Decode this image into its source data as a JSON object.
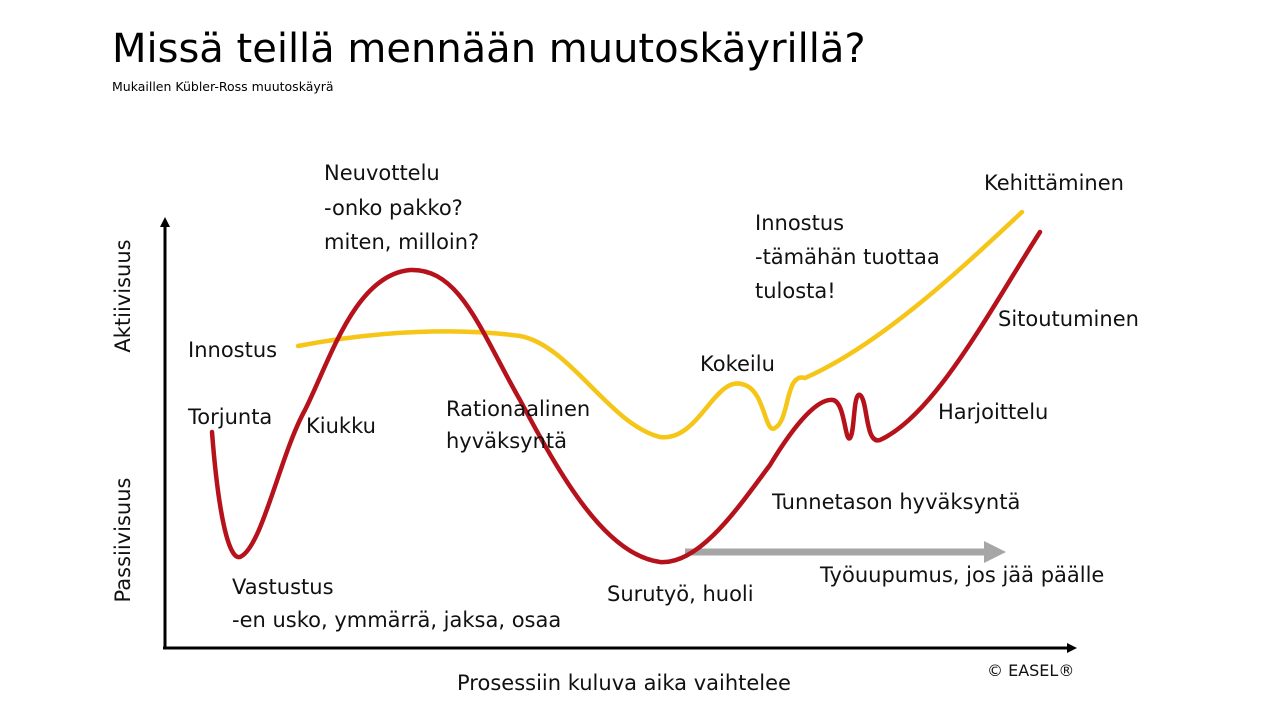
{
  "title": "Missä teillä mennään muutoskäyrillä?",
  "subtitle": "Mukaillen Kübler-Ross muutoskäyrä",
  "axes": {
    "y_upper_label": "Aktiivisuus",
    "y_lower_label": "Passiivisuus",
    "x_label": "Prosessiin kuluva aika vaihtelee"
  },
  "colors": {
    "red_curve": "#b5121b",
    "yellow_curve": "#f5c518",
    "gray_arrow": "#a6a6a6",
    "axis": "#000000"
  },
  "labels": {
    "neuvottelu": [
      "Neuvottelu",
      "-onko pakko?",
      "miten, milloin?"
    ],
    "kehittaminen": "Kehittäminen",
    "innostus_right": [
      "Innostus",
      "-tämähän tuottaa",
      "tulosta!"
    ],
    "sitoutuminen": "Sitoutuminen",
    "innostus_left": "Innostus",
    "kokeilu": "Kokeilu",
    "torjunta": "Torjunta",
    "kiukku": "Kiukku",
    "rationaalinen": [
      "Rationaalinen",
      "hyväksyntä"
    ],
    "harjoittelu": "Harjoittelu",
    "tunnetason": "Tunnetason hyväksyntä",
    "tyouupumus": "Työuupumus, jos jää päälle",
    "vastustus": [
      "Vastustus",
      "-en usko, ymmärrä, jaksa, osaa"
    ],
    "surutyo": "Surutyö, huoli"
  },
  "copyright": "© EASEL®"
}
